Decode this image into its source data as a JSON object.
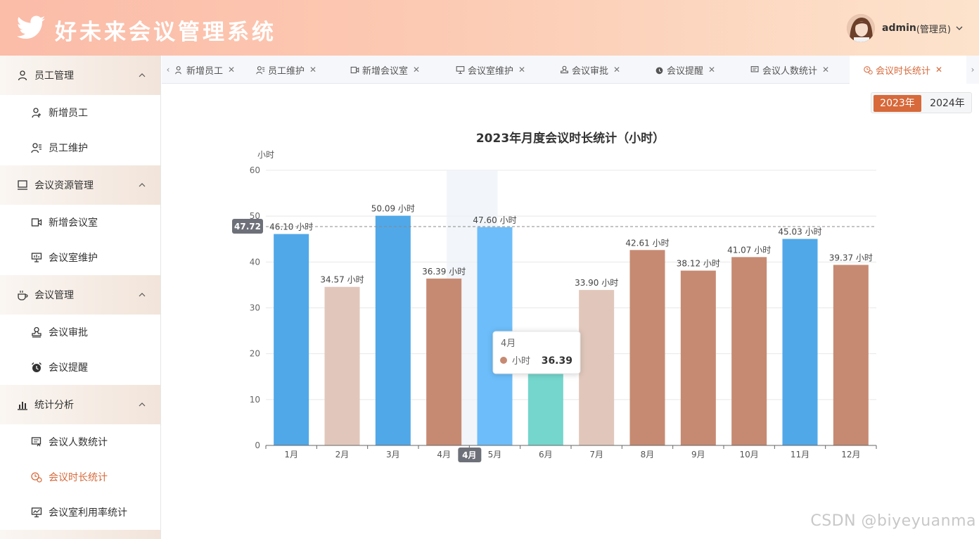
{
  "app": {
    "title": "好未来会议管理系统"
  },
  "user": {
    "name": "admin",
    "role": "(管理员)"
  },
  "sidebar": {
    "groups": [
      {
        "label": "员工管理",
        "items": [
          {
            "label": "新增员工"
          },
          {
            "label": "员工维护"
          }
        ]
      },
      {
        "label": "会议资源管理",
        "items": [
          {
            "label": "新增会议室"
          },
          {
            "label": "会议室维护"
          }
        ]
      },
      {
        "label": "会议管理",
        "items": [
          {
            "label": "会议审批"
          },
          {
            "label": "会议提醒"
          }
        ]
      },
      {
        "label": "统计分析",
        "items": [
          {
            "label": "会议人数统计"
          },
          {
            "label": "会议时长统计"
          },
          {
            "label": "会议室利用率统计"
          }
        ]
      }
    ]
  },
  "tabs": [
    {
      "label": "新增员工"
    },
    {
      "label": "员工维护"
    },
    {
      "label": "新增会议室"
    },
    {
      "label": "会议室维护"
    },
    {
      "label": "会议审批"
    },
    {
      "label": "会议提醒"
    },
    {
      "label": "会议人数统计"
    },
    {
      "label": "会议时长统计"
    }
  ],
  "year_toggle": {
    "selected": "2023年",
    "other": "2024年"
  },
  "chart_data": {
    "type": "bar",
    "title": "2023年月度会议时长统计（小时）",
    "ylabel": "小时",
    "ylim": [
      0,
      60
    ],
    "yticks": [
      0,
      10,
      20,
      30,
      40,
      50,
      60
    ],
    "categories": [
      "1月",
      "2月",
      "3月",
      "4月",
      "5月",
      "6月",
      "7月",
      "8月",
      "9月",
      "10月",
      "11月",
      "12月"
    ],
    "values": [
      46.1,
      34.57,
      50.09,
      36.39,
      47.6,
      15.8,
      33.9,
      42.61,
      38.12,
      41.07,
      45.03,
      39.37
    ],
    "data_labels": [
      "46.10 小时",
      "34.57 小时",
      "50.09 小时",
      "36.39 小时",
      "47.60 小时",
      "",
      "33.90 小时",
      "42.61 小时",
      "38.12 小时",
      "41.07 小时",
      "45.03 小时",
      "39.37 小时"
    ],
    "colors": [
      "#50a8e8",
      "#e1c7bb",
      "#50a8e8",
      "#c68a72",
      "#6cbdfa",
      "#74d6cd",
      "#e1c7bb",
      "#c68a72",
      "#c68a72",
      "#c68a72",
      "#50a8e8",
      "#c68a72"
    ],
    "grid": true,
    "pointer": {
      "y_value": 47.72,
      "y_label": "47.72",
      "x_label": "4月",
      "hover_category": "4月"
    },
    "tooltip": {
      "title": "4月",
      "series": "小时",
      "value": "36.39",
      "marker_color": "#c68a72"
    }
  },
  "watermark": "CSDN @biyeyuanma"
}
